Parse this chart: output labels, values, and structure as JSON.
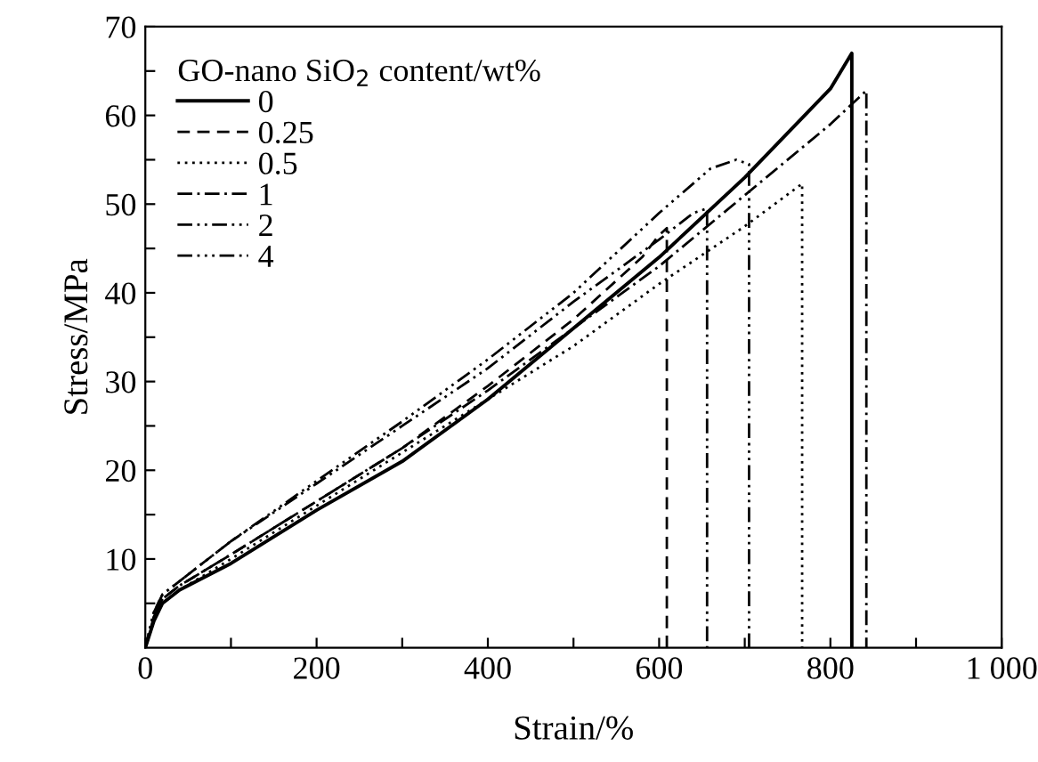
{
  "chart_data": {
    "type": "line",
    "xlabel": "Strain/%",
    "ylabel": "Stress/MPa",
    "legend_title": "GO-nano SiO$_{2}$ content/wt%",
    "legend": "top left",
    "grid": false,
    "marker": "none",
    "xlim": [
      0,
      1000
    ],
    "ylim": [
      0,
      70
    ],
    "xticks": [
      0,
      {
        "value": 100,
        "label": null
      },
      200,
      {
        "value": 300,
        "label": null
      },
      400,
      {
        "value": 500,
        "label": null
      },
      600,
      {
        "value": 700,
        "label": null
      },
      800,
      {
        "value": 900,
        "label": null
      },
      {
        "value": 1000,
        "label": "1 000"
      }
    ],
    "yticks": [
      {
        "value": 5,
        "label": null
      },
      10,
      {
        "value": 15,
        "label": null
      },
      20,
      {
        "value": 25,
        "label": null
      },
      30,
      {
        "value": 35,
        "label": null
      },
      40,
      {
        "value": 45,
        "label": null
      },
      50,
      {
        "value": 55,
        "label": null
      },
      60,
      {
        "value": 65,
        "label": null
      },
      70
    ],
    "series": [
      {
        "name": "0",
        "color": "#000000",
        "line_style": "solid",
        "x": [
          0,
          10,
          20,
          40,
          100,
          200,
          300,
          400,
          500,
          600,
          700,
          800,
          825,
          825
        ],
        "values": [
          0,
          3,
          5,
          6.5,
          9.5,
          15.5,
          21,
          28,
          36,
          44,
          53,
          63,
          67,
          0
        ]
      },
      {
        "name": "0.25",
        "color": "#000000",
        "line_style": "dashed",
        "x": [
          0,
          10,
          20,
          40,
          100,
          200,
          300,
          400,
          500,
          580,
          600,
          609,
          609
        ],
        "values": [
          0,
          3.5,
          5.5,
          7,
          10.5,
          16.5,
          22.5,
          29.5,
          37,
          44,
          46.5,
          47.3,
          0
        ]
      },
      {
        "name": "0.5",
        "color": "#000000",
        "line_style": "dotted",
        "x": [
          0,
          10,
          20,
          40,
          100,
          200,
          300,
          400,
          500,
          600,
          700,
          767,
          767
        ],
        "values": [
          0,
          3,
          5,
          6.5,
          10,
          16,
          22,
          28,
          34,
          41,
          47.5,
          52.3,
          0
        ]
      },
      {
        "name": "1",
        "color": "#000000",
        "line_style": "dashdot",
        "x": [
          0,
          10,
          20,
          40,
          100,
          200,
          300,
          400,
          500,
          600,
          700,
          800,
          842,
          842
        ],
        "values": [
          0,
          3.5,
          5.5,
          7,
          10.5,
          16.5,
          22.5,
          29,
          36,
          43,
          51,
          59,
          62.8,
          0
        ]
      },
      {
        "name": "2",
        "color": "#000000",
        "line_style": "dashdotdot",
        "x": [
          0,
          10,
          20,
          40,
          100,
          200,
          300,
          400,
          500,
          600,
          640,
          656,
          656
        ],
        "values": [
          0,
          4,
          6,
          7.5,
          12,
          18.5,
          25,
          31.5,
          39,
          46,
          49,
          49.5,
          0
        ]
      },
      {
        "name": "4",
        "color": "#000000",
        "line_style": "dashdotdotdot",
        "x": [
          0,
          10,
          20,
          40,
          100,
          200,
          300,
          400,
          500,
          600,
          660,
          690,
          705,
          705
        ],
        "values": [
          0,
          4,
          6,
          7.5,
          12,
          18.8,
          25.5,
          32.5,
          40,
          49,
          54,
          55,
          54.5,
          0
        ]
      }
    ]
  }
}
